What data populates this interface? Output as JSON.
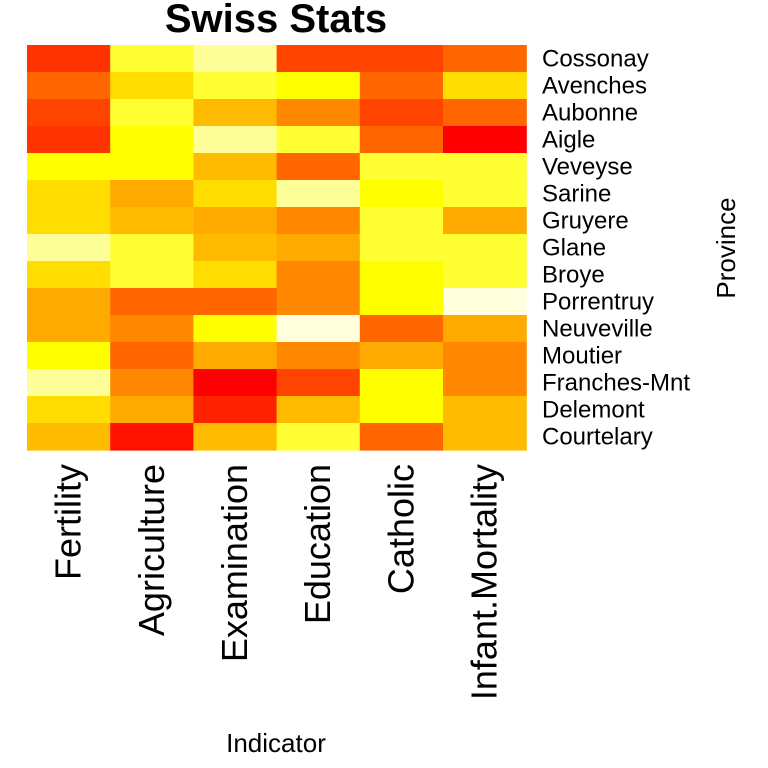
{
  "chart_data": {
    "type": "heatmap",
    "title": "Swiss Stats",
    "xlabel": "Indicator",
    "ylabel": "Province",
    "columns": [
      "Fertility",
      "Agriculture",
      "Examination",
      "Education",
      "Catholic",
      "Infant.Mortality"
    ],
    "rows": [
      "Cossonay",
      "Avenches",
      "Aubonne",
      "Aigle",
      "Veveyse",
      "Sarine",
      "Gruyere",
      "Glane",
      "Broye",
      "Porrentruy",
      "Neuveville",
      "Moutier",
      "Franches-Mnt",
      "Delemont",
      "Courtelary"
    ],
    "colorscale": "heat (red = low, yellow/white = high)",
    "colors": [
      [
        "#FF3300",
        "#FFFF33",
        "#FFFF99",
        "#FF4400",
        "#FF4400",
        "#FF6600"
      ],
      [
        "#FF6600",
        "#FFDD00",
        "#FFFF33",
        "#FFFF00",
        "#FF6600",
        "#FFDD00"
      ],
      [
        "#FF4400",
        "#FFFF33",
        "#FFBB00",
        "#FF8800",
        "#FF4400",
        "#FF6600"
      ],
      [
        "#FF3300",
        "#FFFF00",
        "#FFFF99",
        "#FFFF33",
        "#FF6600",
        "#FF0000"
      ],
      [
        "#FFFF00",
        "#FFFF00",
        "#FFBB00",
        "#FF6600",
        "#FFFF33",
        "#FFFF33"
      ],
      [
        "#FFDD00",
        "#FFAA00",
        "#FFDD00",
        "#FFFF99",
        "#FFFF00",
        "#FFFF33"
      ],
      [
        "#FFDD00",
        "#FFBB00",
        "#FFAA00",
        "#FF8800",
        "#FFFF33",
        "#FFAA00"
      ],
      [
        "#FFFF99",
        "#FFFF33",
        "#FFBB00",
        "#FFAA00",
        "#FFFF33",
        "#FFFF33"
      ],
      [
        "#FFDD00",
        "#FFFF33",
        "#FFDD00",
        "#FF8800",
        "#FFFF00",
        "#FFFF33"
      ],
      [
        "#FFAA00",
        "#FF6600",
        "#FF6600",
        "#FF8800",
        "#FFFF00",
        "#FFFFDD"
      ],
      [
        "#FFAA00",
        "#FF8800",
        "#FFFF00",
        "#FFFFDD",
        "#FF6600",
        "#FFAA00"
      ],
      [
        "#FFFF00",
        "#FF6600",
        "#FFAA00",
        "#FF8800",
        "#FFAA00",
        "#FF8800"
      ],
      [
        "#FFFF99",
        "#FF8800",
        "#FF0000",
        "#FF4400",
        "#FFFF00",
        "#FF8800"
      ],
      [
        "#FFDD00",
        "#FFAA00",
        "#FF2200",
        "#FFBB00",
        "#FFFF00",
        "#FFBB00"
      ],
      [
        "#FFBB00",
        "#FF1100",
        "#FFBB00",
        "#FFFF33",
        "#FF6600",
        "#FFBB00"
      ]
    ]
  }
}
